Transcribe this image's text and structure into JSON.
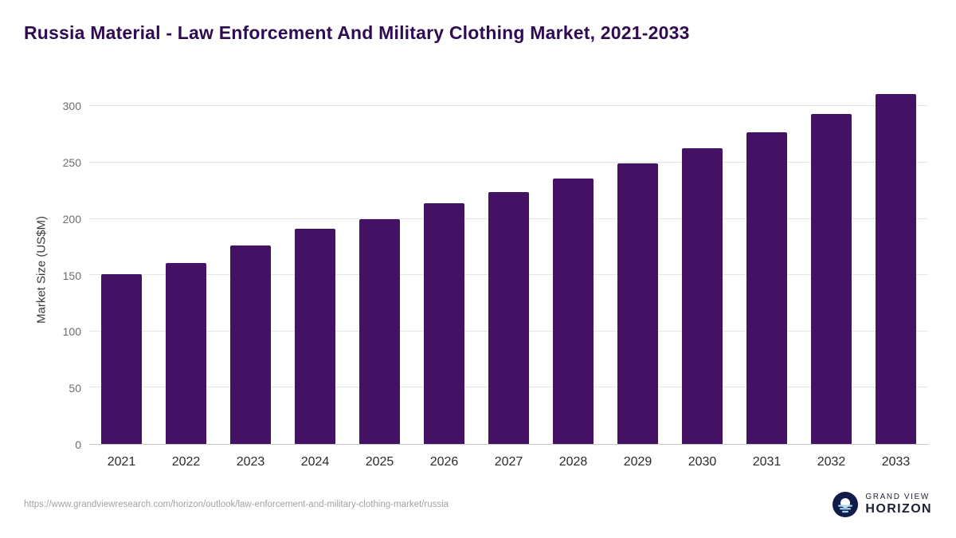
{
  "header": {
    "title": "Russia Material - Law Enforcement And Military Clothing Market, 2021-2033"
  },
  "chart_data": {
    "type": "bar",
    "title": "Russia Material - Law Enforcement And Military Clothing Market, 2021-2033",
    "categories": [
      "2021",
      "2022",
      "2023",
      "2024",
      "2025",
      "2026",
      "2027",
      "2028",
      "2029",
      "2030",
      "2031",
      "2032",
      "2033"
    ],
    "values": [
      151,
      161,
      176,
      191,
      200,
      214,
      224,
      236,
      249,
      263,
      277,
      293,
      311
    ],
    "xlabel": "",
    "ylabel": "Market Size (US$M)",
    "ylim": [
      0,
      320
    ],
    "yticks": [
      0,
      50,
      100,
      150,
      200,
      250,
      300
    ],
    "grid": true,
    "legend": false
  },
  "colors": {
    "bar": "#441265",
    "title": "#2f0c52",
    "gridline": "#e5e5e5",
    "axis": "#c9c9c9",
    "logo_navy": "#111c4b",
    "logo_stripe": "#a5d8f0"
  },
  "footer": {
    "source_url": "https://www.grandviewresearch.com/horizon/outlook/law-enforcement-and-military-clothing-market/russia",
    "logo": {
      "line1": "GRAND VIEW",
      "line2": "HORIZON"
    }
  }
}
